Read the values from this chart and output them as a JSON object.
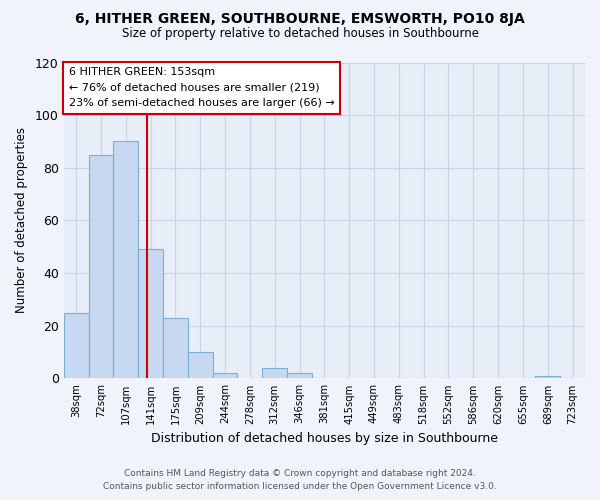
{
  "title": "6, HITHER GREEN, SOUTHBOURNE, EMSWORTH, PO10 8JA",
  "subtitle": "Size of property relative to detached houses in Southbourne",
  "xlabel": "Distribution of detached houses by size in Southbourne",
  "ylabel": "Number of detached properties",
  "bar_color": "#c6d9f0",
  "bar_edge_color": "#7bafd4",
  "vline_color": "#cc0000",
  "annotation_title": "6 HITHER GREEN: 153sqm",
  "annotation_line1": "← 76% of detached houses are smaller (219)",
  "annotation_line2": "23% of semi-detached houses are larger (66) →",
  "annotation_box_color": "#ffffff",
  "annotation_box_edge": "#cc0000",
  "tick_labels": [
    "38sqm",
    "72sqm",
    "107sqm",
    "141sqm",
    "175sqm",
    "209sqm",
    "244sqm",
    "278sqm",
    "312sqm",
    "346sqm",
    "381sqm",
    "415sqm",
    "449sqm",
    "483sqm",
    "518sqm",
    "552sqm",
    "586sqm",
    "620sqm",
    "655sqm",
    "689sqm",
    "723sqm"
  ],
  "bar_heights": [
    25,
    85,
    90,
    49,
    23,
    10,
    2,
    0,
    4,
    2,
    0,
    0,
    0,
    0,
    0,
    0,
    0,
    0,
    0,
    1,
    0
  ],
  "ylim": [
    0,
    120
  ],
  "yticks": [
    0,
    20,
    40,
    60,
    80,
    100,
    120
  ],
  "footer_line1": "Contains HM Land Registry data © Crown copyright and database right 2024.",
  "footer_line2": "Contains public sector information licensed under the Open Government Licence v3.0.",
  "background_color": "#f0f4fa",
  "plot_bg_color": "#e8eef8",
  "grid_color": "#c8d4e8",
  "vline_bar_index": 3
}
